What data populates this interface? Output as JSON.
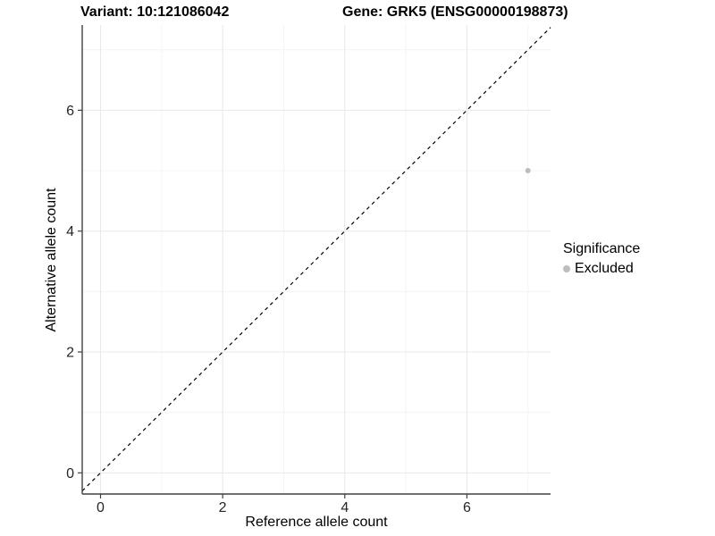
{
  "title": {
    "variant": "Variant: 10:121086042",
    "gene": "Gene: GRK5 (ENSG00000198873)"
  },
  "chart_data": {
    "type": "scatter",
    "title": "Variant: 10:121086042    Gene: GRK5 (ENSG00000198873)",
    "xlabel": "Reference allele count",
    "ylabel": "Alternative allele count",
    "xlim": [
      -0.3,
      7.37
    ],
    "ylim": [
      -0.35,
      7.41
    ],
    "x_major_ticks": [
      0,
      2,
      4,
      6
    ],
    "y_major_ticks": [
      0,
      2,
      4,
      6
    ],
    "x_minor_gridlines": [
      1,
      3,
      5,
      7
    ],
    "y_minor_gridlines": [
      1,
      3,
      5,
      7
    ],
    "grid": true,
    "series": [
      {
        "name": "Excluded",
        "color": "#bdbdbd",
        "points": [
          {
            "x": 7,
            "y": 5
          }
        ]
      }
    ],
    "reference_line": {
      "type": "identity",
      "slope": 1,
      "intercept": 0,
      "style": "dashed",
      "color": "#000000"
    },
    "legend": {
      "title": "Significance",
      "position": "right",
      "entries": [
        {
          "label": "Excluded",
          "color": "#bdbdbd"
        }
      ]
    },
    "colors": {
      "axis_line": "#404040",
      "grid_major": "#e8e8e8",
      "grid_minor": "#f4f4f4",
      "tick_text": "#262626"
    }
  }
}
